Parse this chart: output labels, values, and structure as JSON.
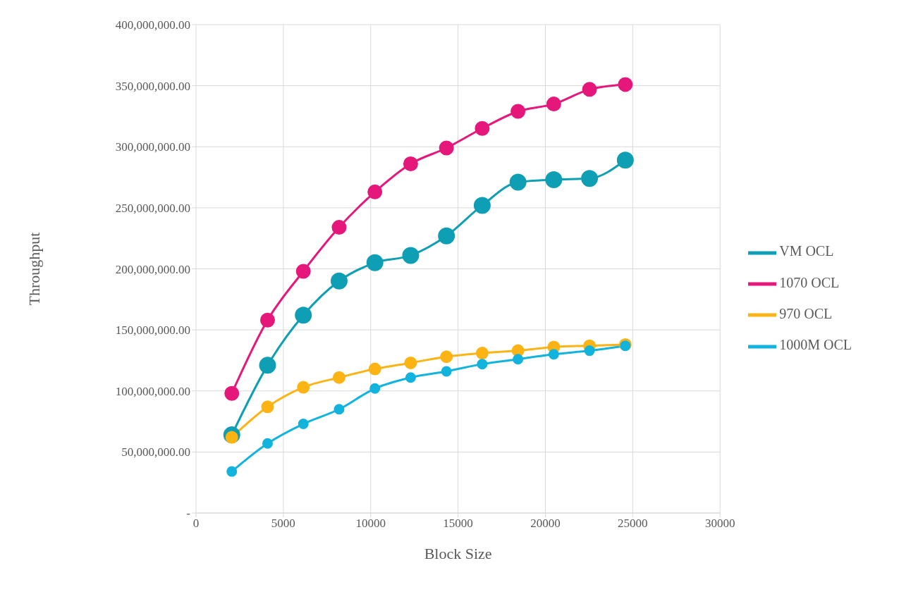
{
  "chart_data": {
    "type": "line",
    "xlabel": "Block Size",
    "ylabel": "Throughput",
    "x": [
      2048,
      4096,
      6144,
      8192,
      10240,
      12288,
      14336,
      16384,
      18432,
      20480,
      22528,
      24576
    ],
    "series": [
      {
        "name": "VM OCL",
        "color": "#0f9fb4",
        "values": [
          64000000,
          121000000,
          162000000,
          190000000,
          205000000,
          211000000,
          227000000,
          252000000,
          271000000,
          273000000,
          274000000,
          289000000
        ]
      },
      {
        "name": "1070 OCL",
        "color": "#e6177a",
        "values": [
          98000000,
          158000000,
          198000000,
          234000000,
          263000000,
          286000000,
          299000000,
          315000000,
          329000000,
          335000000,
          347000000,
          351000000
        ]
      },
      {
        "name": "970 OCL",
        "color": "#fbb414",
        "values": [
          62000000,
          87000000,
          103000000,
          111000000,
          118000000,
          123000000,
          128000000,
          131000000,
          133000000,
          136000000,
          137000000,
          138000000
        ]
      },
      {
        "name": "1000M OCL",
        "color": "#12b3dc",
        "values": [
          34000000,
          57000000,
          73000000,
          85000000,
          102000000,
          111000000,
          116000000,
          122000000,
          126000000,
          130000000,
          133000000,
          137000000
        ]
      }
    ],
    "xlim": [
      0,
      30000
    ],
    "xticks": [
      0,
      5000,
      10000,
      15000,
      20000,
      25000,
      30000
    ],
    "ylim": [
      0,
      400000000
    ],
    "yticks": [
      {
        "value": 0,
        "label": "-"
      },
      {
        "value": 50000000,
        "label": "50,000,000.00"
      },
      {
        "value": 100000000,
        "label": "100,000,000.00"
      },
      {
        "value": 150000000,
        "label": "150,000,000.00"
      },
      {
        "value": 200000000,
        "label": "200,000,000.00"
      },
      {
        "value": 250000000,
        "label": "250,000,000.00"
      },
      {
        "value": 300000000,
        "label": "300,000,000.00"
      },
      {
        "value": 350000000,
        "label": "350,000,000.00"
      },
      {
        "value": 400000000,
        "label": "400,000,000.00"
      }
    ],
    "grid": true,
    "legend": "right",
    "marker": "circle",
    "line_style": "solid"
  }
}
